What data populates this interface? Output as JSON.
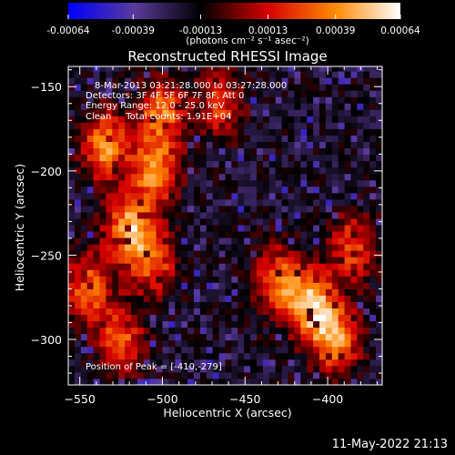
{
  "chart_data": {
    "type": "heatmap",
    "title": "Reconstructed RHESSI Image",
    "colorbar": {
      "tick_labels": [
        "-0.00064",
        "-0.00039",
        "-0.00013",
        "0.00013",
        "0.00039",
        "0.00064"
      ],
      "tick_values": [
        -0.00064,
        -0.00039,
        -0.00013,
        0.00013,
        0.00039,
        0.00064
      ],
      "range": [
        -0.00064,
        0.00064
      ],
      "unit_label": "(photons cm⁻² s⁻¹ asec⁻²)",
      "colors": [
        "#0000ff",
        "#5a3a9a",
        "#000000",
        "#d60000",
        "#ff8800",
        "#ffffff"
      ]
    },
    "xlabel": "Heliocentric X (arcsec)",
    "ylabel": "Heliocentric Y (arcsec)",
    "xlim": [
      -557,
      -367
    ],
    "ylim": [
      -327,
      -138
    ],
    "x_ticks": [
      -550,
      -500,
      -450,
      -400
    ],
    "x_tick_labels": [
      "−550",
      "−500",
      "−450",
      "−400"
    ],
    "y_ticks": [
      -150,
      -200,
      -250,
      -300
    ],
    "y_tick_labels": [
      "−150",
      "−200",
      "−250",
      "−300"
    ],
    "annotations": [
      "8-Mar-2013 03:21:28.000 to 03:27:28.000",
      "Detectors: 3F 4F 5F 6F 7F 8F, Att 0",
      "Energy Range: 12.0 - 25.0 keV",
      "Clean     Total counts: 1.91E+04"
    ],
    "peak_label": "Position of Peak = [-410,-279]",
    "peak": [
      -410,
      -279
    ],
    "bright_regions": [
      {
        "x": -520,
        "y": -235,
        "level": 0.95
      },
      {
        "x": -535,
        "y": -185,
        "level": 0.85
      },
      {
        "x": -505,
        "y": -200,
        "level": 0.8
      },
      {
        "x": -500,
        "y": -165,
        "level": 0.75
      },
      {
        "x": -545,
        "y": -270,
        "level": 0.7
      },
      {
        "x": -525,
        "y": -300,
        "level": 0.65
      },
      {
        "x": -505,
        "y": -255,
        "level": 0.6
      },
      {
        "x": -465,
        "y": -160,
        "level": 0.55
      },
      {
        "x": -410,
        "y": -279,
        "level": 1.0
      },
      {
        "x": -395,
        "y": -300,
        "level": 0.85
      },
      {
        "x": -430,
        "y": -265,
        "level": 0.7
      },
      {
        "x": -385,
        "y": -245,
        "level": 0.6
      }
    ]
  },
  "footer": {
    "timestamp": "11-May-2022 21:13"
  }
}
